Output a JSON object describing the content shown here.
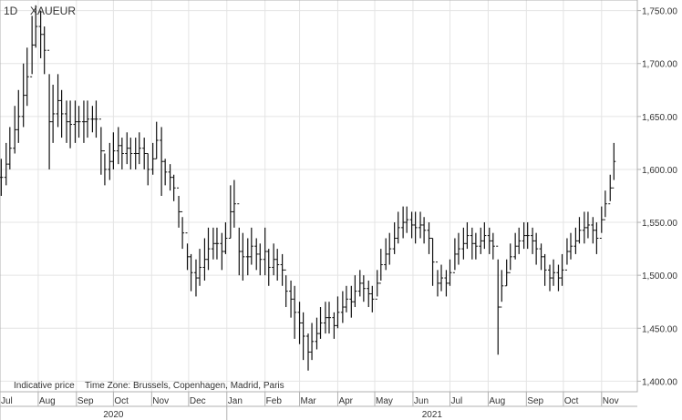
{
  "header": {
    "interval": "1D",
    "symbol": "XAUEUR"
  },
  "footer": {
    "indicative": "Indicative price",
    "timezone": "Time Zone: Brussels, Copenhagen, Madrid, Paris"
  },
  "colors": {
    "bars": "#111111",
    "grid": "#e4e4e4",
    "axis": "#b0b0b0",
    "text": "#333333"
  },
  "chart_data": {
    "type": "ohlc",
    "grid": true,
    "y_axis_position": "right",
    "ylim": [
      1390,
      1760
    ],
    "yticks": [
      1400,
      1450,
      1500,
      1550,
      1600,
      1650,
      1700,
      1750
    ],
    "ytick_labels": [
      "1,400.00",
      "1,450.00",
      "1,500.00",
      "1,550.00",
      "1,600.00",
      "1,650.00",
      "1,700.00",
      "1,750.00"
    ],
    "xlim": [
      "2020-07-01",
      "2021-11-30"
    ],
    "month_ticks": [
      {
        "date": "2020-07-01",
        "label": "Jul"
      },
      {
        "date": "2020-08-01",
        "label": "Aug"
      },
      {
        "date": "2020-09-01",
        "label": "Sep"
      },
      {
        "date": "2020-10-01",
        "label": "Oct"
      },
      {
        "date": "2020-11-01",
        "label": "Nov"
      },
      {
        "date": "2020-12-01",
        "label": "Dec"
      },
      {
        "date": "2021-01-01",
        "label": "Jan"
      },
      {
        "date": "2021-02-01",
        "label": "Feb"
      },
      {
        "date": "2021-03-01",
        "label": "Mar"
      },
      {
        "date": "2021-04-01",
        "label": "Apr"
      },
      {
        "date": "2021-05-01",
        "label": "May"
      },
      {
        "date": "2021-06-01",
        "label": "Jun"
      },
      {
        "date": "2021-07-01",
        "label": "Jul"
      },
      {
        "date": "2021-08-01",
        "label": "Aug"
      },
      {
        "date": "2021-09-01",
        "label": "Sep"
      },
      {
        "date": "2021-10-01",
        "label": "Oct"
      },
      {
        "date": "2021-11-01",
        "label": "Nov"
      }
    ],
    "year_ticks": [
      {
        "date": "2020-07-01",
        "label": "2020"
      },
      {
        "date": "2021-01-01",
        "label": "2021"
      }
    ],
    "series": [
      {
        "fields": [
          "date",
          "low",
          "high"
        ],
        "points": [
          [
            "2020-07-02",
            1575,
            1610
          ],
          [
            "2020-07-06",
            1585,
            1625
          ],
          [
            "2020-07-09",
            1600,
            1640
          ],
          [
            "2020-07-13",
            1615,
            1660
          ],
          [
            "2020-07-16",
            1625,
            1675
          ],
          [
            "2020-07-20",
            1640,
            1700
          ],
          [
            "2020-07-23",
            1660,
            1715
          ],
          [
            "2020-07-27",
            1690,
            1745
          ],
          [
            "2020-07-30",
            1715,
            1755
          ],
          [
            "2020-08-03",
            1705,
            1750
          ],
          [
            "2020-08-06",
            1690,
            1735
          ],
          [
            "2020-08-10",
            1600,
            1690
          ],
          [
            "2020-08-13",
            1625,
            1680
          ],
          [
            "2020-08-17",
            1640,
            1690
          ],
          [
            "2020-08-20",
            1630,
            1675
          ],
          [
            "2020-08-24",
            1625,
            1665
          ],
          [
            "2020-08-27",
            1620,
            1665
          ],
          [
            "2020-08-31",
            1625,
            1665
          ],
          [
            "2020-09-03",
            1630,
            1660
          ],
          [
            "2020-09-07",
            1625,
            1665
          ],
          [
            "2020-09-10",
            1630,
            1665
          ],
          [
            "2020-09-14",
            1635,
            1660
          ],
          [
            "2020-09-17",
            1630,
            1665
          ],
          [
            "2020-09-21",
            1595,
            1640
          ],
          [
            "2020-09-24",
            1585,
            1615
          ],
          [
            "2020-09-28",
            1590,
            1625
          ],
          [
            "2020-10-01",
            1600,
            1635
          ],
          [
            "2020-10-05",
            1605,
            1640
          ],
          [
            "2020-10-08",
            1600,
            1630
          ],
          [
            "2020-10-12",
            1605,
            1635
          ],
          [
            "2020-10-15",
            1600,
            1630
          ],
          [
            "2020-10-19",
            1600,
            1630
          ],
          [
            "2020-10-22",
            1605,
            1635
          ],
          [
            "2020-10-26",
            1600,
            1630
          ],
          [
            "2020-10-29",
            1585,
            1615
          ],
          [
            "2020-11-02",
            1595,
            1625
          ],
          [
            "2020-11-05",
            1610,
            1645
          ],
          [
            "2020-11-09",
            1575,
            1640
          ],
          [
            "2020-11-12",
            1585,
            1610
          ],
          [
            "2020-11-16",
            1580,
            1605
          ],
          [
            "2020-11-19",
            1570,
            1595
          ],
          [
            "2020-11-23",
            1545,
            1575
          ],
          [
            "2020-11-26",
            1525,
            1555
          ],
          [
            "2020-11-30",
            1505,
            1530
          ],
          [
            "2020-12-03",
            1485,
            1520
          ],
          [
            "2020-12-07",
            1480,
            1515
          ],
          [
            "2020-12-10",
            1490,
            1525
          ],
          [
            "2020-12-14",
            1495,
            1535
          ],
          [
            "2020-12-17",
            1505,
            1545
          ],
          [
            "2020-12-21",
            1515,
            1545
          ],
          [
            "2020-12-24",
            1515,
            1545
          ],
          [
            "2020-12-28",
            1505,
            1540
          ],
          [
            "2020-12-31",
            1520,
            1550
          ],
          [
            "2021-01-04",
            1535,
            1585
          ],
          [
            "2021-01-07",
            1545,
            1590
          ],
          [
            "2021-01-11",
            1500,
            1545
          ],
          [
            "2021-01-14",
            1495,
            1540
          ],
          [
            "2021-01-18",
            1500,
            1535
          ],
          [
            "2021-01-21",
            1510,
            1545
          ],
          [
            "2021-01-25",
            1505,
            1535
          ],
          [
            "2021-01-28",
            1500,
            1530
          ],
          [
            "2021-02-01",
            1500,
            1545
          ],
          [
            "2021-02-04",
            1490,
            1525
          ],
          [
            "2021-02-08",
            1500,
            1530
          ],
          [
            "2021-02-11",
            1495,
            1525
          ],
          [
            "2021-02-15",
            1490,
            1520
          ],
          [
            "2021-02-18",
            1470,
            1500
          ],
          [
            "2021-02-22",
            1460,
            1495
          ],
          [
            "2021-02-25",
            1440,
            1490
          ],
          [
            "2021-03-01",
            1435,
            1475
          ],
          [
            "2021-03-04",
            1420,
            1465
          ],
          [
            "2021-03-08",
            1410,
            1445
          ],
          [
            "2021-03-11",
            1420,
            1455
          ],
          [
            "2021-03-15",
            1430,
            1460
          ],
          [
            "2021-03-18",
            1440,
            1470
          ],
          [
            "2021-03-22",
            1445,
            1475
          ],
          [
            "2021-03-25",
            1445,
            1475
          ],
          [
            "2021-03-29",
            1440,
            1465
          ],
          [
            "2021-04-01",
            1450,
            1480
          ],
          [
            "2021-04-05",
            1455,
            1485
          ],
          [
            "2021-04-08",
            1465,
            1490
          ],
          [
            "2021-04-12",
            1460,
            1490
          ],
          [
            "2021-04-15",
            1470,
            1500
          ],
          [
            "2021-04-19",
            1480,
            1505
          ],
          [
            "2021-04-22",
            1475,
            1500
          ],
          [
            "2021-04-26",
            1470,
            1495
          ],
          [
            "2021-04-29",
            1465,
            1490
          ],
          [
            "2021-05-03",
            1480,
            1505
          ],
          [
            "2021-05-06",
            1495,
            1525
          ],
          [
            "2021-05-10",
            1505,
            1535
          ],
          [
            "2021-05-13",
            1510,
            1540
          ],
          [
            "2021-05-17",
            1520,
            1550
          ],
          [
            "2021-05-20",
            1530,
            1560
          ],
          [
            "2021-05-24",
            1535,
            1565
          ],
          [
            "2021-05-27",
            1540,
            1565
          ],
          [
            "2021-05-31",
            1535,
            1560
          ],
          [
            "2021-06-03",
            1530,
            1560
          ],
          [
            "2021-06-07",
            1535,
            1560
          ],
          [
            "2021-06-10",
            1530,
            1555
          ],
          [
            "2021-06-14",
            1520,
            1550
          ],
          [
            "2021-06-17",
            1490,
            1535
          ],
          [
            "2021-06-21",
            1480,
            1505
          ],
          [
            "2021-06-24",
            1485,
            1510
          ],
          [
            "2021-06-28",
            1480,
            1505
          ],
          [
            "2021-07-01",
            1490,
            1515
          ],
          [
            "2021-07-05",
            1505,
            1535
          ],
          [
            "2021-07-08",
            1510,
            1540
          ],
          [
            "2021-07-12",
            1515,
            1545
          ],
          [
            "2021-07-15",
            1525,
            1550
          ],
          [
            "2021-07-19",
            1515,
            1545
          ],
          [
            "2021-07-22",
            1515,
            1540
          ],
          [
            "2021-07-26",
            1520,
            1545
          ],
          [
            "2021-07-29",
            1525,
            1550
          ],
          [
            "2021-08-02",
            1520,
            1545
          ],
          [
            "2021-08-05",
            1515,
            1540
          ],
          [
            "2021-08-09",
            1425,
            1515
          ],
          [
            "2021-08-12",
            1475,
            1505
          ],
          [
            "2021-08-16",
            1490,
            1515
          ],
          [
            "2021-08-19",
            1505,
            1530
          ],
          [
            "2021-08-23",
            1515,
            1540
          ],
          [
            "2021-08-26",
            1520,
            1545
          ],
          [
            "2021-08-30",
            1525,
            1550
          ],
          [
            "2021-09-02",
            1525,
            1550
          ],
          [
            "2021-09-06",
            1520,
            1545
          ],
          [
            "2021-09-09",
            1510,
            1540
          ],
          [
            "2021-09-13",
            1505,
            1530
          ],
          [
            "2021-09-16",
            1490,
            1520
          ],
          [
            "2021-09-20",
            1485,
            1510
          ],
          [
            "2021-09-23",
            1490,
            1515
          ],
          [
            "2021-09-27",
            1485,
            1510
          ],
          [
            "2021-09-30",
            1490,
            1520
          ],
          [
            "2021-10-04",
            1510,
            1535
          ],
          [
            "2021-10-07",
            1515,
            1540
          ],
          [
            "2021-10-11",
            1520,
            1545
          ],
          [
            "2021-10-14",
            1530,
            1555
          ],
          [
            "2021-10-18",
            1530,
            1560
          ],
          [
            "2021-10-21",
            1535,
            1560
          ],
          [
            "2021-10-25",
            1530,
            1555
          ],
          [
            "2021-10-28",
            1520,
            1550
          ],
          [
            "2021-11-01",
            1540,
            1565
          ],
          [
            "2021-11-04",
            1555,
            1580
          ],
          [
            "2021-11-08",
            1570,
            1595
          ],
          [
            "2021-11-11",
            1590,
            1625
          ]
        ]
      }
    ]
  }
}
